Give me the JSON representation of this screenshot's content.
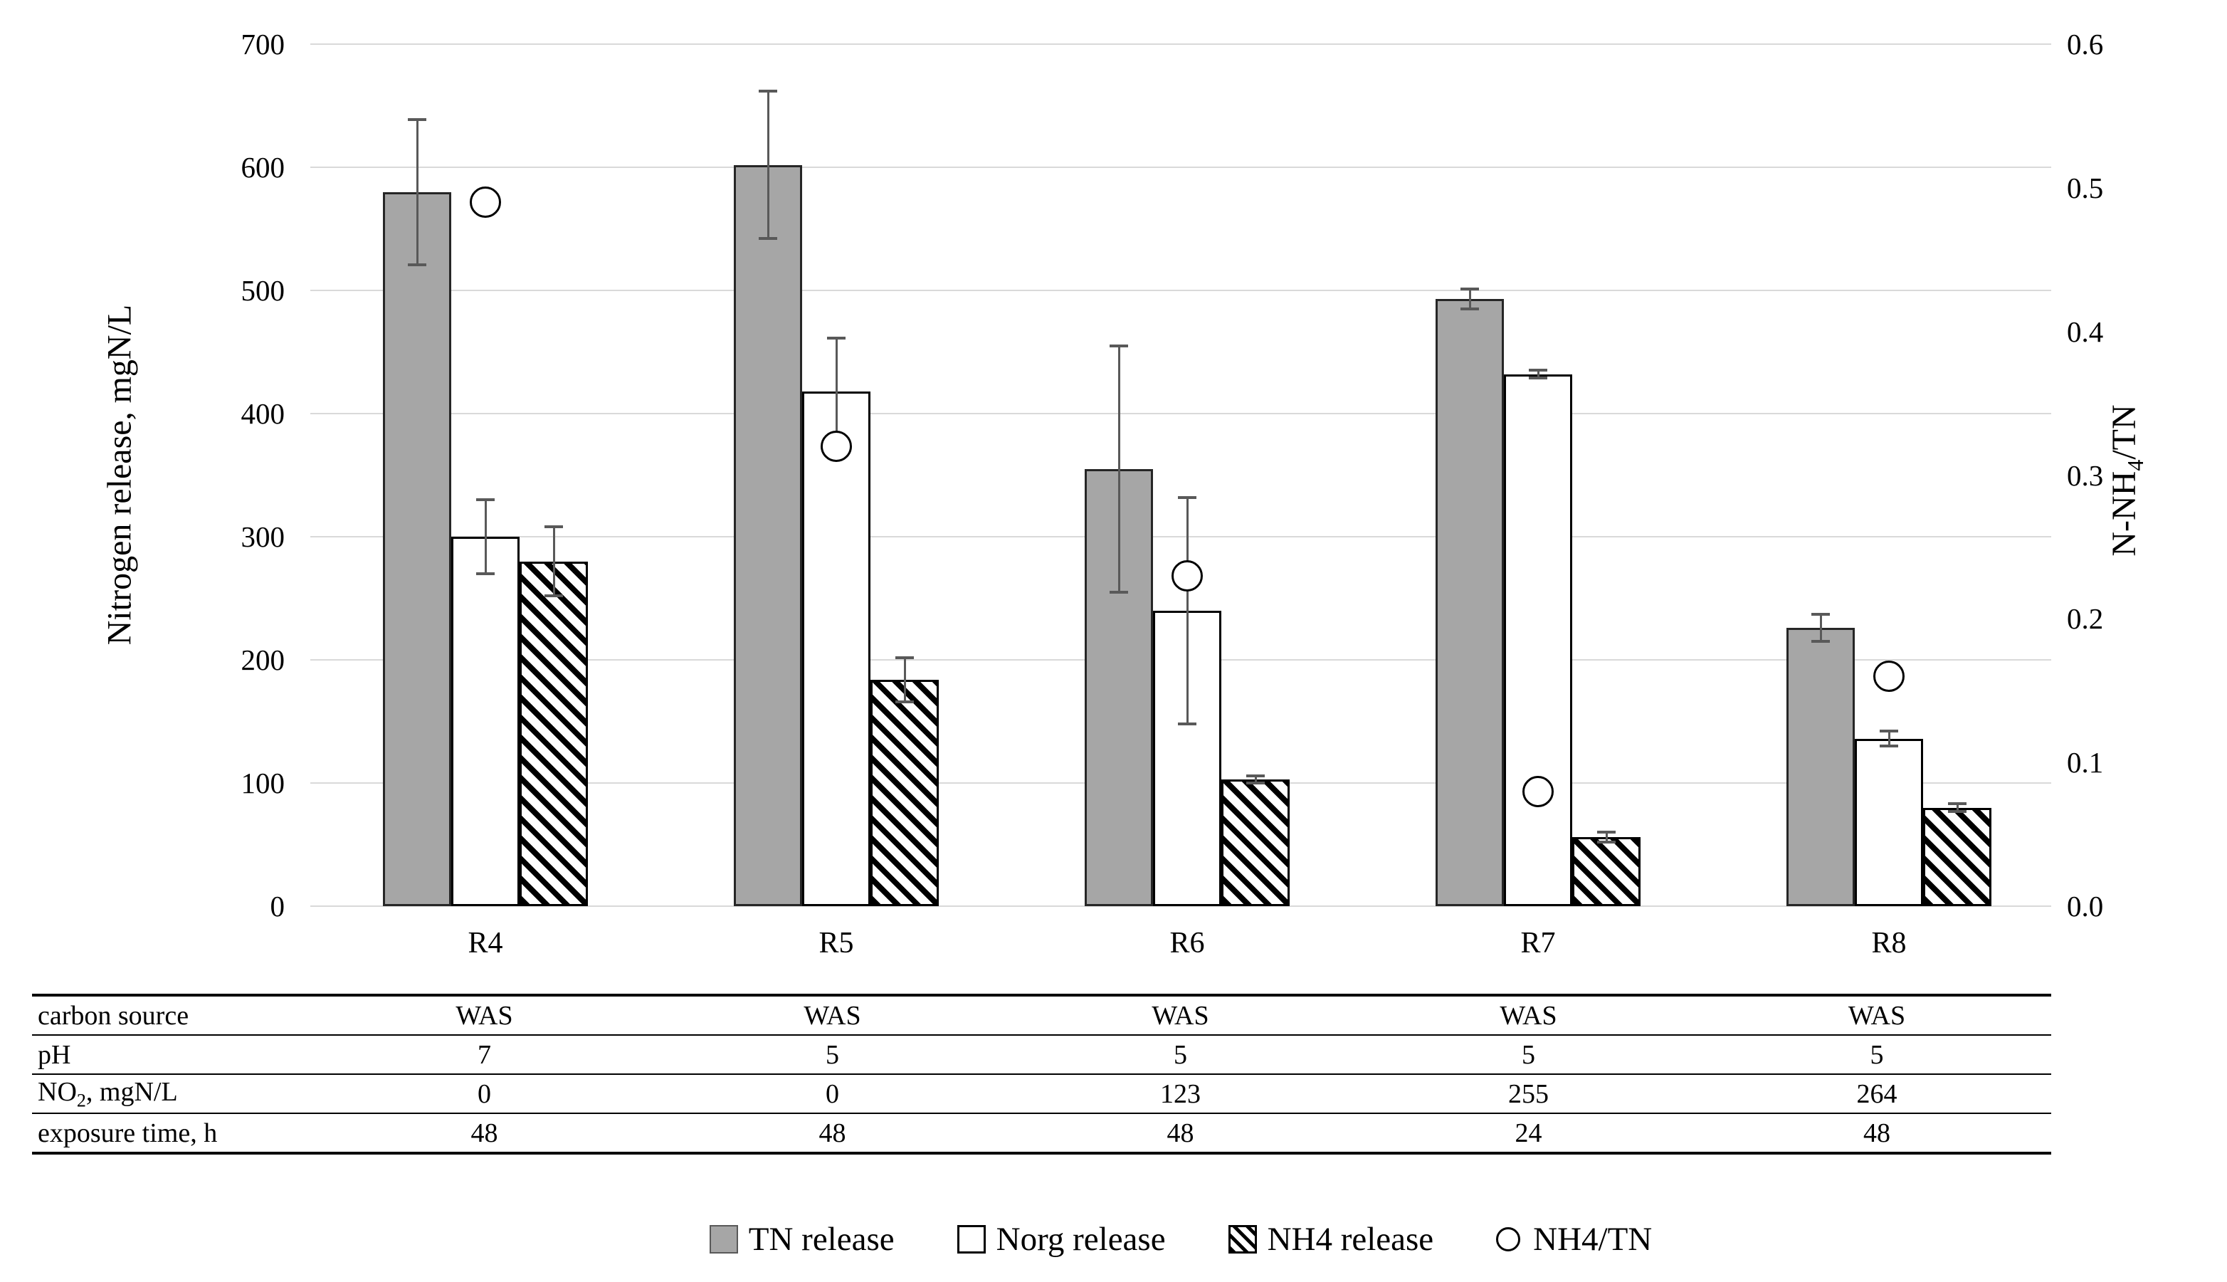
{
  "chart_data": {
    "type": "bar",
    "categories": [
      "R4",
      "R5",
      "R6",
      "R7",
      "R8"
    ],
    "series": [
      {
        "name": "TN release",
        "fill": "gray",
        "values": [
          580,
          602,
          355,
          493,
          226
        ],
        "errors": [
          59,
          60,
          100,
          8,
          11
        ]
      },
      {
        "name": "Norg release",
        "fill": "white",
        "values": [
          300,
          418,
          240,
          432,
          136
        ],
        "errors": [
          30,
          43,
          92,
          3,
          6
        ]
      },
      {
        "name": "NH4 release",
        "fill": "hatch",
        "values": [
          280,
          184,
          103,
          56,
          80
        ],
        "errors": [
          28,
          18,
          3,
          4,
          3
        ]
      }
    ],
    "scatter_series": {
      "name": "NH4/TN",
      "axis": "right",
      "values": [
        0.49,
        0.32,
        0.23,
        0.08,
        0.16
      ]
    },
    "left_axis": {
      "title": "Nitrogen release, mgN/L",
      "min": 0,
      "max": 700,
      "step": 100,
      "ticks": [
        "700",
        "600",
        "500",
        "400",
        "300",
        "200",
        "100",
        "0"
      ]
    },
    "right_axis": {
      "title_main": "N-NH",
      "title_sub": "4",
      "title_rest": "/TN",
      "min": 0,
      "max": 0.6,
      "step": 0.1,
      "ticks": [
        "0.6",
        "0.5",
        "0.4",
        "0.3",
        "0.2",
        "0.1",
        "0.0"
      ]
    },
    "grid": true,
    "legend_position": "bottom"
  },
  "table": {
    "rows": [
      {
        "label": "carbon source",
        "values": [
          "WAS",
          "WAS",
          "WAS",
          "WAS",
          "WAS"
        ]
      },
      {
        "label": "pH",
        "values": [
          "7",
          "5",
          "5",
          "5",
          "5"
        ]
      },
      {
        "label_main": "NO",
        "label_sub": "2",
        "label_rest": ", mgN/L",
        "values": [
          "0",
          "0",
          "123",
          "255",
          "264"
        ]
      },
      {
        "label": "exposure time, h",
        "values": [
          "48",
          "48",
          "48",
          "24",
          "48"
        ]
      }
    ]
  },
  "legend": {
    "items": [
      {
        "marker": "gray-square-icon",
        "label": "TN release"
      },
      {
        "marker": "white-square-icon",
        "label": "Norg release"
      },
      {
        "marker": "hatch-square-icon",
        "label": "NH4 release"
      },
      {
        "marker": "circle-icon",
        "label": "NH4/TN"
      }
    ]
  },
  "colors": {
    "bar_gray": "#a6a6a6",
    "bar_white": "#ffffff",
    "hatch_black": "#000000",
    "error_bar": "#595959",
    "gridline": "#d9d9d9",
    "text": "#000000",
    "background": "#ffffff"
  }
}
